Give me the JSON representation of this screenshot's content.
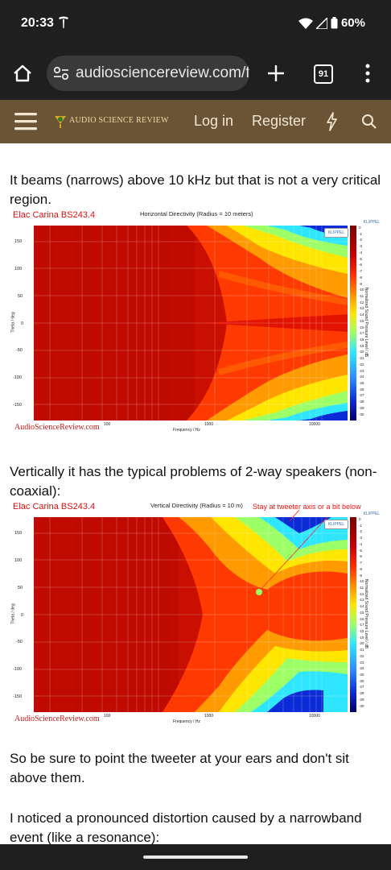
{
  "status_bar": {
    "time": "20:33",
    "battery": "60%"
  },
  "browser": {
    "url": "audiosciencereview.com/for",
    "tab_count": "91"
  },
  "site_header": {
    "logo": "AUDIO SCIENCE REVIEW",
    "login": "Log in",
    "register": "Register"
  },
  "content": {
    "para1": "It beams (narrows) above 10 kHz but that is not a very critical region.",
    "para2": "Vertically it has the typical problems of 2-way speakers (non-coaxial):",
    "para3": "So be sure to point the tweeter at your ears and don't sit above them.",
    "para4": "I noticed a pronounced distortion caused by a narrowband event (like a resonance):"
  },
  "figure1": {
    "caption": "Elac Carina BS243.4",
    "title": "Horizontal Directivity (Radius = 10 meters)",
    "klippel_small": "KLIPPEL",
    "klippel_badge": "KLIPPEL",
    "ylabel": "Theta / deg",
    "xlabel": "Frequency / Hz",
    "cbar_title": "Normalized Sound Pressure Level / dB",
    "watermark": "AudioScienceReview.com"
  },
  "figure2": {
    "caption": "Elac Carina BS243.4",
    "title": "Vertical Directivity (Radius = 10 m)",
    "annotation": "Stay at tweeter axis or a bit below",
    "klippel_small": "KLIPPEL",
    "klippel_badge": "KLIPPEL",
    "ylabel": "Theta / deg",
    "xlabel": "Frequency / Hz",
    "cbar_title": "Normalized Sound Pressure Level / dB",
    "watermark": "AudioScienceReview.com"
  },
  "chart_data": [
    {
      "type": "heatmap",
      "title": "Horizontal Directivity (Radius = 10 meters)",
      "xlabel": "Frequency / Hz",
      "ylabel": "Theta / deg",
      "x_ticks": [
        "100",
        "1000",
        "10000"
      ],
      "y_ticks": [
        150,
        100,
        50,
        0,
        -50,
        -100,
        -150
      ],
      "colorbar_ticks": [
        0,
        -1,
        -2,
        -3,
        -4,
        -5,
        -6,
        -7,
        -8,
        -9,
        -10,
        -11,
        -12,
        -13,
        -14,
        -15,
        -16,
        -17,
        -18,
        -19,
        -20,
        -21,
        -22,
        -23,
        -24,
        -25,
        -26,
        -27,
        -28,
        -29,
        -30
      ],
      "colorbar_label": "Normalized Sound Pressure Level / dB"
    },
    {
      "type": "heatmap",
      "title": "Vertical Directivity (Radius = 10 m)",
      "xlabel": "Frequency / Hz",
      "ylabel": "Theta / deg",
      "x_ticks": [
        "100",
        "1000",
        "10000"
      ],
      "y_ticks": [
        150,
        100,
        50,
        0,
        -50,
        -100,
        -150
      ],
      "colorbar_ticks": [
        0,
        -1,
        -2,
        -3,
        -4,
        -5,
        -6,
        -7,
        -8,
        -9,
        -10,
        -11,
        -12,
        -13,
        -14,
        -15,
        -16,
        -17,
        -18,
        -19,
        -20,
        -21,
        -22,
        -23,
        -24,
        -25,
        -26,
        -27,
        -28,
        -29,
        -30
      ],
      "colorbar_label": "Normalized Sound Pressure Level / dB"
    }
  ]
}
